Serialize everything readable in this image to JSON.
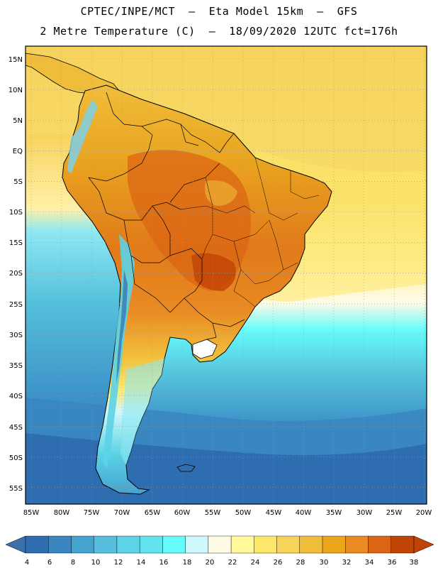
{
  "header": {
    "line1": "CPTEC/INPE/MCT  –  Eta Model 15km  –  GFS",
    "line2": "2 Metre Temperature (C)  –  18/09/2020 12UTC fct=176h"
  },
  "axes": {
    "lat_labels": [
      "15N",
      "10N",
      "5N",
      "EQ",
      "5S",
      "10S",
      "15S",
      "20S",
      "25S",
      "30S",
      "35S",
      "40S",
      "45S",
      "50S",
      "55S"
    ],
    "lon_labels": [
      "85W",
      "80W",
      "75W",
      "70W",
      "65W",
      "60W",
      "55W",
      "50W",
      "45W",
      "40W",
      "35W",
      "30W",
      "25W",
      "20W"
    ]
  },
  "legend": {
    "ticks": [
      "4",
      "6",
      "8",
      "10",
      "12",
      "14",
      "16",
      "18",
      "20",
      "22",
      "24",
      "26",
      "28",
      "30",
      "32",
      "34",
      "36",
      "38"
    ],
    "colors": [
      "#2e6db0",
      "#3a86c0",
      "#45a3cf",
      "#55bfdd",
      "#5cd3e6",
      "#62e3ee",
      "#66fbfb",
      "#cff8fc",
      "#fffbe6",
      "#fff99a",
      "#fde76a",
      "#f8d35a",
      "#f0bd3a",
      "#eaa519",
      "#e98a22",
      "#db6514",
      "#c04405"
    ],
    "below_color": "#3d70ab",
    "above_color": "#c2430a"
  },
  "colors": {
    "ocean_cold": "#2e6db0",
    "ocean_cool": "#3e94c8",
    "ocean_mild": "#55c1dc",
    "ocean_cyan": "#66fbfb",
    "ocean_pale": "#fffbe6",
    "ocean_warm": "#fde76a",
    "land_hot": "#db6514",
    "land_warm": "#f0bd3a",
    "andes": "#7fd0e6"
  }
}
